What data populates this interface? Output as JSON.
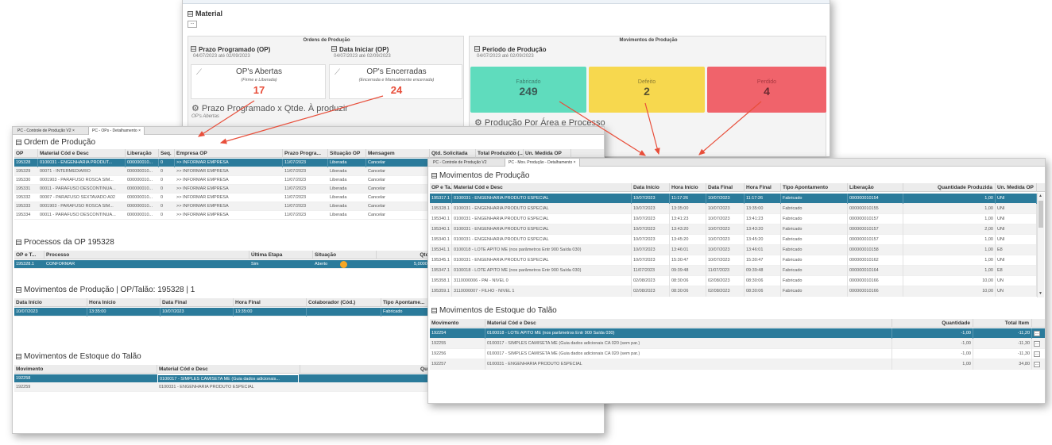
{
  "back": {
    "material_title": "Material",
    "material_btn": "...",
    "ordens_title": "Ordens de Produção",
    "prazo_title": "Prazo Programado (OP)",
    "prazo_range": "04/07/2023 até 02/09/2023",
    "data_ini_title": "Data Iniciar (OP)",
    "data_ini_range": "04/07/2023 até 02/09/2023",
    "abertas_title": "OP's Abertas",
    "abertas_sub": "(Firme e Liberada)",
    "abertas_value": "17",
    "encerradas_title": "OP's Encerradas",
    "encerradas_sub": "(Encerrada e Manualmente encerrada)",
    "encerradas_value": "24",
    "prazo_x_qtde": "Prazo Programado x Qtde. À produzir",
    "ops_abertas": "OP's Abertas",
    "movs_title": "Movimentos de Produção",
    "periodo_title": "Período de Produção",
    "periodo_range": "04/07/2023 até 02/09/2023",
    "card_fabricado": "Fabricado",
    "card_fabricado_value": "249",
    "card_defeito": "Defeito",
    "card_defeito_value": "2",
    "card_perdido": "Perdido",
    "card_perdido_value": "4",
    "producao_area": "Produção Por Área e Processo"
  },
  "left": {
    "tab1": "PC - Controle de Produção V2",
    "tab1_close": "×",
    "tab2": "PC - OPs - Detalhamento",
    "tab2_close": "×",
    "ordem_title": "Ordem de Produção",
    "ordem_headers": [
      "OP",
      "Material Cód e Desc",
      "Liberação",
      "Seq.",
      "Empresa OP",
      "Prazo Progra...",
      "Situação OP",
      "Mensagem"
    ],
    "ordem_extra_headers": [
      "Qtd. Solicitada",
      "Total Produzido (...",
      "Un. Medida OP"
    ],
    "ordem_rows": [
      [
        "195328",
        "0100031 - ENGENHARIA PRODUT...",
        "000000010...",
        "0",
        ">> INFORMAR EMPRESA",
        "11/07/2023",
        "Liberada",
        "Cancelar"
      ],
      [
        "195329",
        "00071 - INTERMEDIARIO",
        "000000010...",
        "0",
        ">> INFORMAR EMPRESA",
        "11/07/2023",
        "Liberada",
        "Cancelar"
      ],
      [
        "195330",
        "0001903 - PARAFUSO ROSCA SIM...",
        "000000010...",
        "0",
        ">> INFORMAR EMPRESA",
        "11/07/2023",
        "Liberada",
        "Cancelar"
      ],
      [
        "195331",
        "00011 - PARAFUSO DESCONTINUA...",
        "000000010...",
        "0",
        ">> INFORMAR EMPRESA",
        "11/07/2023",
        "Liberada",
        "Cancelar"
      ],
      [
        "195332",
        "00007 - PARAFUSO SEXTAVADO A02",
        "000000010...",
        "0",
        ">> INFORMAR EMPRESA",
        "11/07/2023",
        "Liberada",
        "Cancelar"
      ],
      [
        "195333",
        "0001903 - PARAFUSO ROSCA SIM...",
        "000000010...",
        "0",
        ">> INFORMAR EMPRESA",
        "11/07/2023",
        "Liberada",
        "Cancelar"
      ],
      [
        "195334",
        "00011 - PARAFUSO DESCONTINUA...",
        "000000010...",
        "0",
        ">> INFORMAR EMPRESA",
        "11/07/2023",
        "Liberada",
        "Cancelar"
      ]
    ],
    "proc_title": "Processos da OP 195328",
    "proc_headers": [
      "OP e T...",
      "Processo",
      "Última Etapa",
      "Situação",
      "Qtde."
    ],
    "proc_row": [
      "195328.1",
      "CONFORMAR",
      "Sim",
      "Aberto",
      "5,000000"
    ],
    "mov_title": "Movimentos de Produção | OP/Talão: 195328 | 1",
    "mov_headers": [
      "Data Início",
      "Hora Início",
      "Data Final",
      "Hora Final",
      "Colaborador (Cód.)",
      "Tipo Apontame..."
    ],
    "mov_row": [
      "10/07/2023",
      "13:35:00",
      "10/07/2023",
      "13:35:00",
      "",
      "Fabricado"
    ],
    "est_title": "Movimentos de Estoque do Talão",
    "est_headers": [
      "Movimento",
      "Material Cód e Desc",
      "Quantid..."
    ],
    "est_rows": [
      [
        "192258",
        "0100017 - SIMPLES CAMISETA ME (Guia dados adicionais..."
      ],
      [
        "192259",
        "0100031 - ENGENHARIA PRODUTO ESPECIAL"
      ]
    ]
  },
  "right": {
    "tab1": "PC - Controle de Produção V2",
    "tab2": "PC - Mov. Produção - Detalhamento",
    "tab2_close": "×",
    "mov_title": "Movimentos de Produção",
    "mov_headers": [
      "OP e Ta...",
      "Material Cód e Desc",
      "Data Início",
      "Hora Início",
      "Data Final",
      "Hora Final",
      "Tipo Apontamento",
      "Liberação",
      "Quantidade Produzida",
      "Un. Medida OP"
    ],
    "mov_rows": [
      [
        "195317.1",
        "0100031 - ENGENHARIA PRODUTO ESPECIAL",
        "10/07/2023",
        "11:17:26",
        "10/07/2023",
        "11:17:26",
        "Fabricado",
        "000000010154",
        "1,00",
        "UNI"
      ],
      [
        "195328.1",
        "0100031 - ENGENHARIA PRODUTO ESPECIAL",
        "10/07/2023",
        "13:35:00",
        "10/07/2023",
        "13:35:00",
        "Fabricado",
        "000000010155",
        "1,00",
        "UNI"
      ],
      [
        "195340.1",
        "0100031 - ENGENHARIA PRODUTO ESPECIAL",
        "10/07/2023",
        "13:41:23",
        "10/07/2023",
        "13:41:23",
        "Fabricado",
        "000000010157",
        "1,00",
        "UNI"
      ],
      [
        "195340.1",
        "0100031 - ENGENHARIA PRODUTO ESPECIAL",
        "10/07/2023",
        "13:43:20",
        "10/07/2023",
        "13:43:20",
        "Fabricado",
        "000000010157",
        "2,00",
        "UNI"
      ],
      [
        "195340.1",
        "0100031 - ENGENHARIA PRODUTO ESPECIAL",
        "10/07/2023",
        "13:45:20",
        "10/07/2023",
        "13:45:20",
        "Fabricado",
        "000000010157",
        "1,00",
        "UNI"
      ],
      [
        "195341.1",
        "0100018 - LOTE APITO ME (nos parâmetros Entr 900 Saída 030)",
        "10/07/2023",
        "13:46:01",
        "10/07/2023",
        "13:46:01",
        "Fabricado",
        "000000010158",
        "1,00",
        "E8"
      ],
      [
        "195345.1",
        "0100031 - ENGENHARIA PRODUTO ESPECIAL",
        "10/07/2023",
        "15:30:47",
        "10/07/2023",
        "15:30:47",
        "Fabricado",
        "000000010162",
        "1,00",
        "UNI"
      ],
      [
        "195347.1",
        "0100018 - LOTE APITO ME (nos parâmetros Entr 900 Saída 030)",
        "11/07/2023",
        "09:39:48",
        "11/07/2023",
        "09:39:48",
        "Fabricado",
        "000000010164",
        "1,00",
        "E8"
      ],
      [
        "195358.1",
        "3110000006 - PAI - NIVEL 0",
        "02/08/2023",
        "08:30:06",
        "02/08/2023",
        "08:30:06",
        "Fabricado",
        "000000010166",
        "10,00",
        "UN"
      ],
      [
        "195359.1",
        "3110000007 - FILHO - NIVEL 1",
        "02/08/2023",
        "08:30:06",
        "02/08/2023",
        "08:30:06",
        "Fabricado",
        "000000010166",
        "10,00",
        "UN"
      ]
    ],
    "est_title": "Movimentos de Estoque do Talão",
    "est_headers": [
      "Movimento",
      "Material Cód e Desc",
      "Quantidade",
      "Total Item"
    ],
    "est_rows": [
      [
        "192254",
        "0100018 - LOTE APITO ME (nos parâmetros Entr 900 Saída 030)",
        "-1,00",
        "-11,20"
      ],
      [
        "192255",
        "0100017 - SIMPLES CAMISETA ME (Guia dados adicionais CA 020 (sem par.)",
        "-1,00",
        "-11,30"
      ],
      [
        "192256",
        "0100017 - SIMPLES CAMISETA ME (Guia dados adicionais CA 020 (sem par.)",
        "-1,00",
        "-11,30"
      ],
      [
        "192257",
        "0100031 - ENGENHARIA PRODUTO ESPECIAL",
        "1,00",
        "34,80"
      ]
    ],
    "ellipsis": "..."
  },
  "colors": {
    "accent": "#2b7b9b",
    "fabricado": "#5fdcbd",
    "defeito": "#f7d84e",
    "perdido": "#f0636b",
    "arrow": "#e84e3a"
  }
}
